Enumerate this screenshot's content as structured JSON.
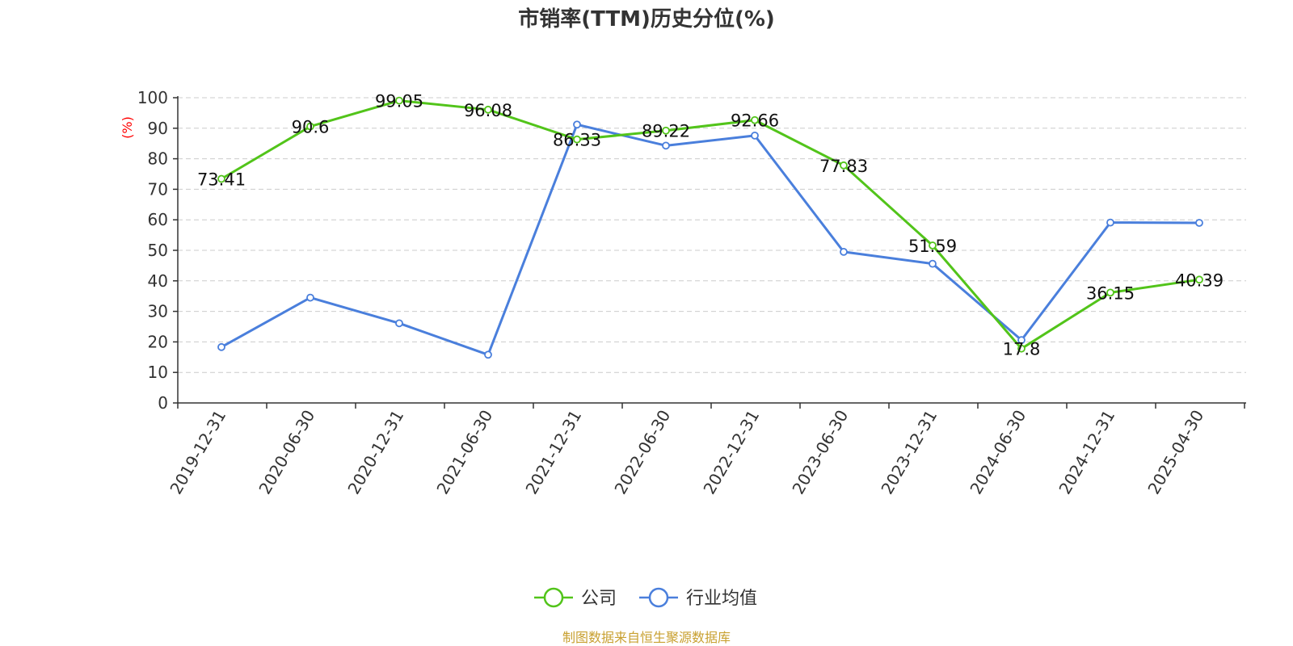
{
  "chart_data": {
    "type": "line",
    "title": "市销率(TTM)历史分位(%)",
    "ylabel": "(%)",
    "xlabel": "",
    "ylim": [
      0,
      100
    ],
    "yticks": [
      0,
      10,
      20,
      30,
      40,
      50,
      60,
      70,
      80,
      90,
      100
    ],
    "grid": true,
    "legend_position": "bottom-center",
    "categories": [
      "2019-12-31",
      "2020-06-30",
      "2020-12-31",
      "2021-06-30",
      "2021-12-31",
      "2022-06-30",
      "2022-12-31",
      "2023-06-30",
      "2023-12-31",
      "2024-06-30",
      "2024-12-31",
      "2025-04-30"
    ],
    "series": [
      {
        "name": "公司",
        "color": "#52c41a",
        "values": [
          73.41,
          90.6,
          99.05,
          96.08,
          86.33,
          89.22,
          92.66,
          77.83,
          51.59,
          17.8,
          36.15,
          40.39
        ],
        "labels": [
          "73.41",
          "90.6",
          "99.05",
          "96.08",
          "86.33",
          "89.22",
          "92.66",
          "77.83",
          "51.59",
          "17.8",
          "36.15",
          "40.39"
        ]
      },
      {
        "name": "行业均值",
        "color": "#4a7fdc",
        "values": [
          18.3,
          34.5,
          26.1,
          15.8,
          91.2,
          84.3,
          87.6,
          49.5,
          45.6,
          20.6,
          59.1,
          59.0
        ]
      }
    ],
    "source": "制图数据来自恒生聚源数据库"
  }
}
